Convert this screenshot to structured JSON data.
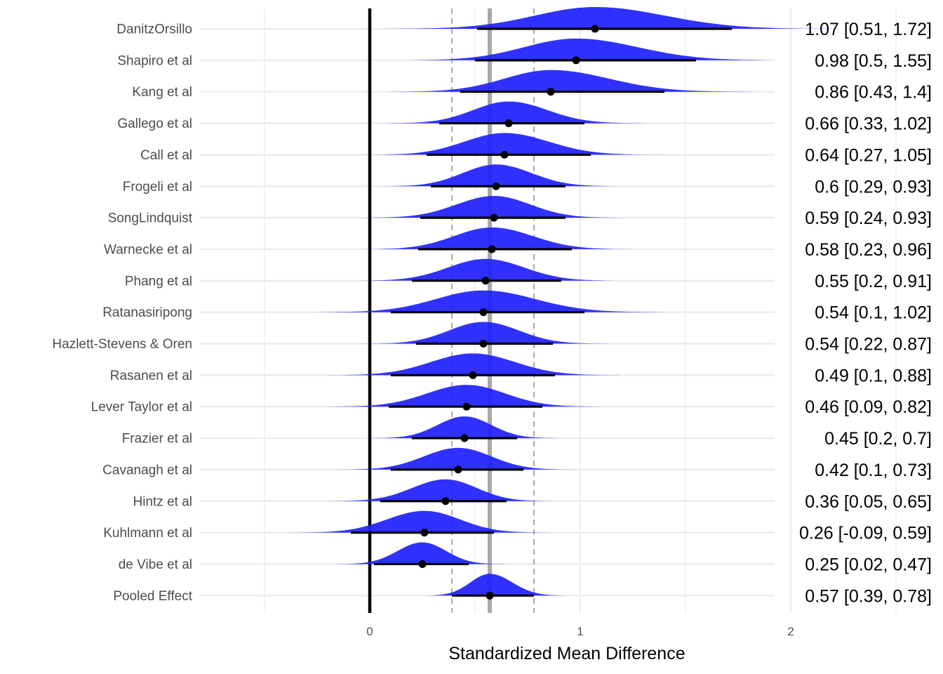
{
  "chart_data": {
    "type": "forest",
    "title": "",
    "xlabel": "Standardized Mean Difference",
    "ylabel": "",
    "xlim": [
      -0.82,
      2.5
    ],
    "x_ticks": [
      0,
      1,
      2
    ],
    "x_tick_labels": [
      "0",
      "1",
      "2"
    ],
    "x_minor_gridlines": [
      -0.5,
      0.5,
      1.5,
      2.5
    ],
    "reference_line": 0,
    "pooled_effect_line": 0.57,
    "pooled_ci_dashed_lines": [
      0.39,
      0.78
    ],
    "grid": true,
    "colors": {
      "density_fill": "#1f1fff",
      "point": "#000000",
      "interval": "#000000",
      "reference_line": "#000000",
      "pooled_line": "#a8a8a8",
      "dashed_lines": "#ababab",
      "gridline": "#ebebeb"
    },
    "studies": [
      {
        "name": "DanitzOrsillo",
        "estimate": 1.07,
        "lower": 0.51,
        "upper": 1.72,
        "label": "1.07 [0.51, 1.72]"
      },
      {
        "name": "Shapiro et al",
        "estimate": 0.98,
        "lower": 0.5,
        "upper": 1.55,
        "label": "0.98 [0.5, 1.55]"
      },
      {
        "name": "Kang et al",
        "estimate": 0.86,
        "lower": 0.43,
        "upper": 1.4,
        "label": "0.86 [0.43, 1.4]"
      },
      {
        "name": "Gallego et al",
        "estimate": 0.66,
        "lower": 0.33,
        "upper": 1.02,
        "label": "0.66 [0.33, 1.02]"
      },
      {
        "name": "Call et al",
        "estimate": 0.64,
        "lower": 0.27,
        "upper": 1.05,
        "label": "0.64 [0.27, 1.05]"
      },
      {
        "name": "Frogeli et al",
        "estimate": 0.6,
        "lower": 0.29,
        "upper": 0.93,
        "label": "0.6 [0.29, 0.93]"
      },
      {
        "name": "SongLindquist",
        "estimate": 0.59,
        "lower": 0.24,
        "upper": 0.93,
        "label": "0.59 [0.24, 0.93]"
      },
      {
        "name": "Warnecke et al",
        "estimate": 0.58,
        "lower": 0.23,
        "upper": 0.96,
        "label": "0.58 [0.23, 0.96]"
      },
      {
        "name": "Phang et al",
        "estimate": 0.55,
        "lower": 0.2,
        "upper": 0.91,
        "label": "0.55 [0.2, 0.91]"
      },
      {
        "name": "Ratanasiripong",
        "estimate": 0.54,
        "lower": 0.1,
        "upper": 1.02,
        "label": "0.54 [0.1, 1.02]"
      },
      {
        "name": "Hazlett-Stevens & Oren",
        "estimate": 0.54,
        "lower": 0.22,
        "upper": 0.87,
        "label": "0.54 [0.22, 0.87]"
      },
      {
        "name": "Rasanen et al",
        "estimate": 0.49,
        "lower": 0.1,
        "upper": 0.88,
        "label": "0.49 [0.1, 0.88]"
      },
      {
        "name": "Lever Taylor et al",
        "estimate": 0.46,
        "lower": 0.09,
        "upper": 0.82,
        "label": "0.46 [0.09, 0.82]"
      },
      {
        "name": "Frazier et al",
        "estimate": 0.45,
        "lower": 0.2,
        "upper": 0.7,
        "label": "0.45 [0.2, 0.7]"
      },
      {
        "name": "Cavanagh et al",
        "estimate": 0.42,
        "lower": 0.1,
        "upper": 0.73,
        "label": "0.42 [0.1, 0.73]"
      },
      {
        "name": "Hintz et al",
        "estimate": 0.36,
        "lower": 0.05,
        "upper": 0.65,
        "label": "0.36 [0.05, 0.65]"
      },
      {
        "name": "Kuhlmann et al",
        "estimate": 0.26,
        "lower": -0.09,
        "upper": 0.59,
        "label": "0.26 [-0.09, 0.59]"
      },
      {
        "name": "de Vibe et al",
        "estimate": 0.25,
        "lower": 0.02,
        "upper": 0.47,
        "label": "0.25 [0.02, 0.47]"
      },
      {
        "name": "Pooled Effect",
        "estimate": 0.57,
        "lower": 0.39,
        "upper": 0.78,
        "label": "0.57 [0.39, 0.78]"
      }
    ]
  }
}
